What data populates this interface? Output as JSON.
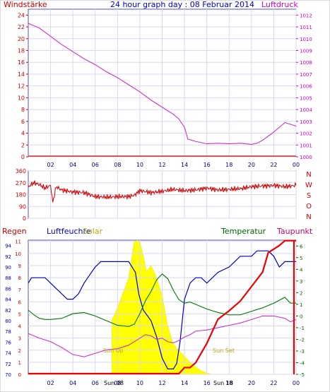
{
  "chart_data": [
    {
      "type": "line",
      "title": "24 hour graph day : 08 Februar 2014",
      "left_axis_label": "Windstärke",
      "right_axis_label": "Luftdruck",
      "left_ticks": [
        "0",
        "2",
        "4",
        "6",
        "8",
        "10",
        "12",
        "14",
        "16",
        "18",
        "20",
        "22",
        "24"
      ],
      "right_ticks": [
        "1000",
        "1001",
        "1002",
        "1003",
        "1004",
        "1005",
        "1006",
        "1007",
        "1008",
        "1009",
        "1010",
        "1011",
        "1012"
      ],
      "x_ticks": [
        "02",
        "04",
        "06",
        "08",
        "10",
        "12",
        "14",
        "16",
        "18",
        "20",
        "22",
        "00"
      ],
      "ylim_left": [
        0,
        25
      ],
      "ylim_right": [
        1000,
        1012.5
      ],
      "xlim": [
        0,
        24
      ],
      "colors": {
        "pressure": "#cc33cc",
        "wind": "#cc0000",
        "axis": "#cc0000",
        "right_axis": "#cc00cc",
        "title": "#0000cc"
      },
      "series": [
        {
          "name": "Luftdruck",
          "x": [
            0,
            0.5,
            1,
            2,
            3,
            4,
            5,
            6,
            7,
            8,
            9,
            10,
            11,
            12,
            13,
            13.5,
            14,
            14.3,
            15,
            16,
            17,
            18,
            19,
            20,
            20.5,
            21,
            22,
            23,
            24
          ],
          "y": [
            1011.3,
            1011.1,
            1010.9,
            1010.2,
            1009.5,
            1008.9,
            1008.3,
            1007.8,
            1007.2,
            1006.7,
            1006.1,
            1005.5,
            1004.8,
            1004.2,
            1003.6,
            1003.2,
            1002.5,
            1001.5,
            1001.3,
            1001.1,
            1001.15,
            1001.1,
            1001.15,
            1001.05,
            1001.15,
            1001.4,
            1002.1,
            1002.9,
            1002.6
          ]
        },
        {
          "name": "Windstärke",
          "x": [
            0,
            24
          ],
          "y": [
            0,
            0
          ]
        }
      ]
    },
    {
      "type": "line",
      "left_ticks": [
        "0",
        "90",
        "180",
        "270",
        "360"
      ],
      "right_labels": [
        "N",
        "W",
        "S",
        "O",
        "N"
      ],
      "ylim": [
        0,
        360
      ],
      "xlim": [
        0,
        24
      ],
      "series": [
        {
          "name": "Windrichtung",
          "x": [
            0,
            0.5,
            1,
            1.5,
            2,
            2.2,
            2.5,
            3,
            4,
            5,
            6,
            7,
            8,
            9,
            9.5,
            10,
            11,
            12,
            13,
            14,
            15,
            16,
            17,
            18,
            19,
            20,
            21,
            22,
            23,
            24
          ],
          "y": [
            240,
            270,
            255,
            230,
            250,
            120,
            240,
            215,
            200,
            195,
            165,
            160,
            165,
            165,
            175,
            210,
            195,
            205,
            220,
            210,
            215,
            230,
            215,
            220,
            225,
            240,
            245,
            250,
            240,
            250
          ]
        }
      ]
    },
    {
      "type": "line",
      "left_axis_label": "Regen",
      "humidity_label": "Luftfeuchte",
      "solar_label": "Solar",
      "temp_label": "Temperatur",
      "dew_label": "Taupunkt",
      "rain_ticks": [
        "0",
        "1",
        "2",
        "3",
        "4",
        "5",
        "6",
        "7",
        "8",
        "9",
        "10",
        "11"
      ],
      "humidity_ticks": [
        "70",
        "72",
        "74",
        "76",
        "78",
        "80",
        "82",
        "84",
        "86",
        "88",
        "90",
        "92",
        "94"
      ],
      "temp_ticks": [
        "-5",
        "-4",
        "-3",
        "-2",
        "-1",
        "0",
        "1",
        "2",
        "3",
        "4",
        "5",
        "6"
      ],
      "x_ticks": [
        "02",
        "04",
        "06",
        "08",
        "10",
        "12",
        "14",
        "16",
        "18",
        "20",
        "22",
        "00"
      ],
      "sun_up_label": "Sun Up",
      "sun_set_label": "Sun Set",
      "sun_rise_time": "Sun 08",
      "sun_set_time": "Sun 18",
      "xlim": [
        0,
        24
      ],
      "rain_lim": [
        0,
        11.1
      ],
      "humidity_lim": [
        70,
        95
      ],
      "temp_lim": [
        -5,
        6.5
      ],
      "colors": {
        "humidity": "#0000cc",
        "temperature": "#007700",
        "dew": "#cc33cc",
        "rain": "#ee0000",
        "solar": "#ffff00",
        "rain_axis": "#cc0000",
        "temp_axis": "#006600"
      },
      "series": [
        {
          "name": "Luftfeuchte",
          "x": [
            0,
            0.3,
            1.5,
            2.5,
            3,
            3.5,
            4,
            4.5,
            5,
            6,
            6.5,
            9,
            9.6,
            9.9,
            10.3,
            11,
            11.5,
            12,
            12.5,
            13,
            13.3,
            13.6,
            14,
            14.5,
            15,
            15.5,
            16,
            16.5,
            17,
            18,
            18.5,
            19,
            20,
            20.5,
            21,
            21.5,
            22,
            22.5,
            23,
            23.5,
            24
          ],
          "y": [
            87,
            88,
            88,
            86,
            85,
            84,
            84,
            85,
            87,
            90,
            91,
            91,
            89,
            85,
            82,
            80,
            77,
            73,
            71,
            71,
            72,
            76,
            84,
            87,
            88,
            88,
            87,
            88,
            89,
            90,
            91,
            92,
            92,
            93,
            93,
            93,
            92,
            90,
            91,
            91,
            91
          ]
        },
        {
          "name": "Temperatur",
          "x": [
            0,
            0.5,
            1,
            1.5,
            2,
            3,
            4,
            5,
            6,
            7,
            8,
            9,
            9.5,
            10,
            10.5,
            11,
            11.5,
            12,
            12.5,
            13,
            13.5,
            14,
            14.5,
            15,
            16,
            17,
            18,
            19,
            20,
            21,
            22,
            23,
            23.5,
            24
          ],
          "y": [
            0.5,
            0.1,
            -0.2,
            -0.3,
            -0.3,
            -0.2,
            0.2,
            0.3,
            0.0,
            -0.4,
            -0.8,
            -0.9,
            -0.7,
            0.2,
            1.3,
            2.1,
            3.1,
            3.6,
            3.2,
            2.2,
            1.4,
            1.1,
            1.2,
            1.0,
            0.6,
            0.3,
            0.1,
            0.1,
            0.4,
            0.7,
            1.1,
            1.6,
            1.1,
            1.1
          ]
        },
        {
          "name": "Taupunkt",
          "x": [
            0,
            0.5,
            1,
            2,
            3,
            4,
            5,
            6,
            7,
            8,
            9,
            10,
            10.5,
            11,
            11.5,
            12,
            12.5,
            13,
            13.5,
            14,
            14.5,
            15,
            16,
            17,
            18,
            19,
            20,
            21,
            22,
            23,
            23.5,
            24
          ],
          "y": [
            -1.5,
            -1.7,
            -1.9,
            -2.2,
            -2.7,
            -3.3,
            -3.5,
            -3.2,
            -2.9,
            -2.8,
            -2.5,
            -1.9,
            -1.6,
            -1.7,
            -2.0,
            -1.9,
            -2.2,
            -2.3,
            -2.1,
            -1.8,
            -1.6,
            -1.3,
            -1.2,
            -1.0,
            -0.8,
            -0.6,
            -0.3,
            0.0,
            0.0,
            -0.2,
            -0.5,
            -0.3
          ]
        },
        {
          "name": "Regen",
          "x": [
            0,
            13.5,
            14,
            14.5,
            15,
            15.5,
            16,
            16.5,
            17,
            18,
            19,
            20,
            21,
            21.5,
            22,
            22.5,
            23,
            24
          ],
          "y": [
            0,
            0,
            0.5,
            0.5,
            0.9,
            1.7,
            2.5,
            3.5,
            4.5,
            5.2,
            6.0,
            7.2,
            8.4,
            10.0,
            10.3,
            10.6,
            11.0,
            11.0
          ]
        },
        {
          "name": "Solar",
          "x": [
            7.5,
            8,
            9,
            9.5,
            9.8,
            10,
            10.3,
            10.6,
            11,
            11.5,
            12,
            12.5,
            13,
            13.5,
            14,
            14.5,
            15,
            15.5,
            16,
            16.5
          ],
          "y": [
            4.5,
            5.5,
            8.0,
            11.0,
            11.1,
            11.0,
            9.8,
            8.5,
            9.0,
            8.0,
            6.5,
            4.0,
            2.5,
            2.0,
            1.5,
            1.0,
            0.6,
            0.3,
            0.1,
            0
          ]
        }
      ]
    }
  ]
}
